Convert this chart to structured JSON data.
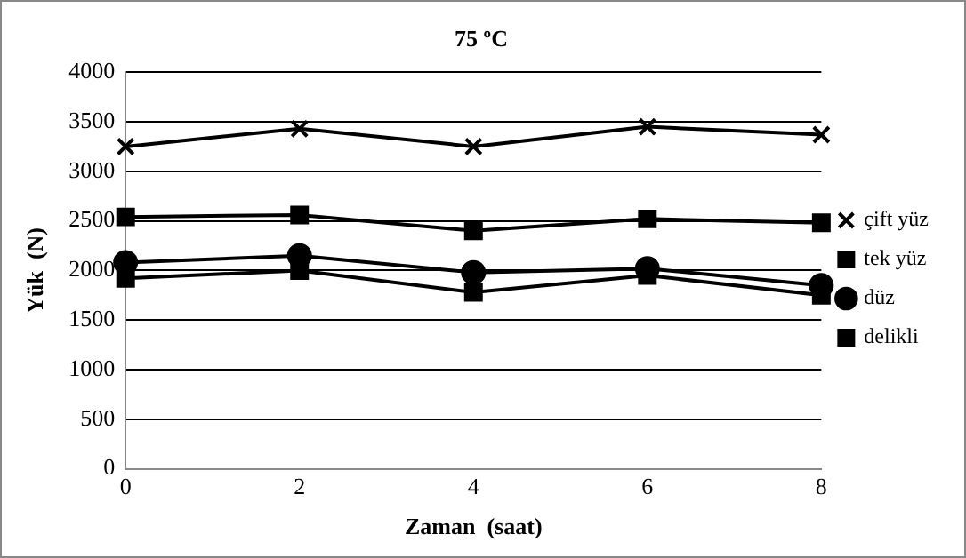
{
  "chart_data": {
    "type": "line",
    "title": "75 ºC",
    "xlabel": "Zaman  (saat)",
    "ylabel": "Yük  (N)",
    "categories": [
      "0",
      "2",
      "4",
      "6",
      "8"
    ],
    "series": [
      {
        "name": "çift yüz",
        "color": "#000000",
        "marker": "cross",
        "values": [
          3250,
          3430,
          3250,
          3450,
          3370
        ]
      },
      {
        "name": "tek yüz",
        "color": "#000000",
        "marker": "square",
        "values": [
          2540,
          2560,
          2400,
          2520,
          2480
        ]
      },
      {
        "name": "düz",
        "color": "#000000",
        "marker": "circle",
        "values": [
          2080,
          2150,
          1980,
          2020,
          1850
        ]
      },
      {
        "name": "delikli",
        "color": "#000000",
        "marker": "square",
        "values": [
          1920,
          2000,
          1780,
          1950,
          1750
        ]
      }
    ],
    "ylim": [
      0,
      4000
    ],
    "yticks": [
      0,
      500,
      1000,
      1500,
      2000,
      2500,
      3000,
      3500,
      4000
    ],
    "grid": "y",
    "legend": "right",
    "line_style": "solid"
  }
}
